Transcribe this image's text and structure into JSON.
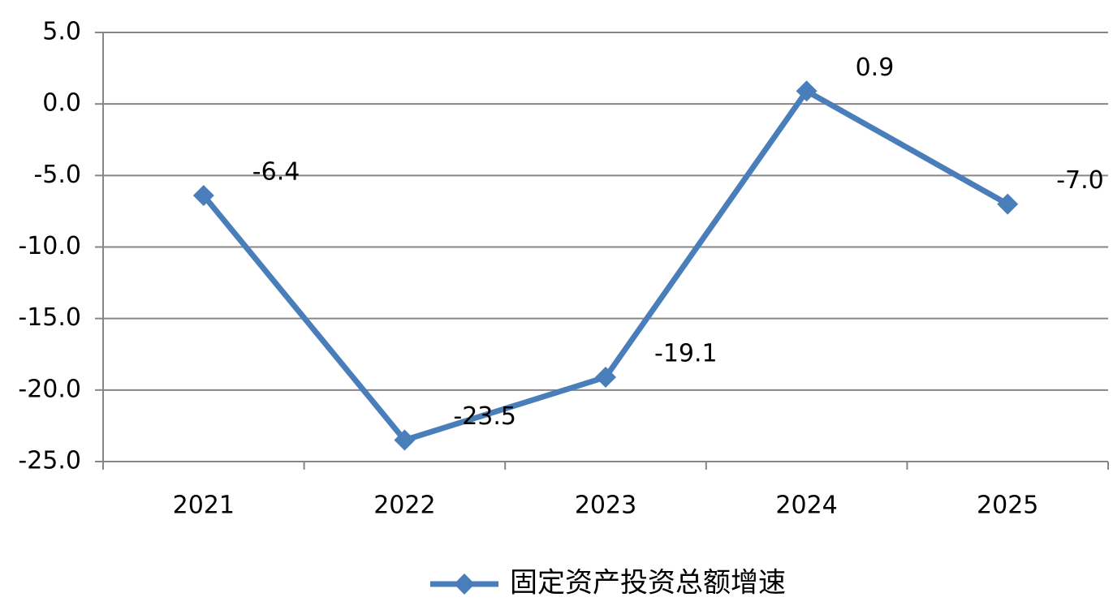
{
  "chart_data": {
    "type": "line",
    "categories": [
      "2021",
      "2022",
      "2023",
      "2024",
      "2025"
    ],
    "series": [
      {
        "name": "固定资产投资总额增速",
        "color": "#4a7ebb",
        "values": [
          -6.4,
          -23.5,
          -19.1,
          0.9,
          -7.0
        ],
        "value_labels": [
          "-6.4",
          "-23.5",
          "-19.1",
          "0.9",
          "-7.0"
        ]
      }
    ],
    "ylim": [
      -25,
      5
    ],
    "yticks": [
      {
        "value": -25,
        "label": "-25.0"
      },
      {
        "value": -20,
        "label": "-20.0"
      },
      {
        "value": -15,
        "label": "-15.0"
      },
      {
        "value": -10,
        "label": "-10.0"
      },
      {
        "value": -5,
        "label": "-5.0"
      },
      {
        "value": 0,
        "label": "0.0"
      },
      {
        "value": 5,
        "label": "5.0"
      }
    ],
    "grid": true,
    "legend": "bottom"
  }
}
